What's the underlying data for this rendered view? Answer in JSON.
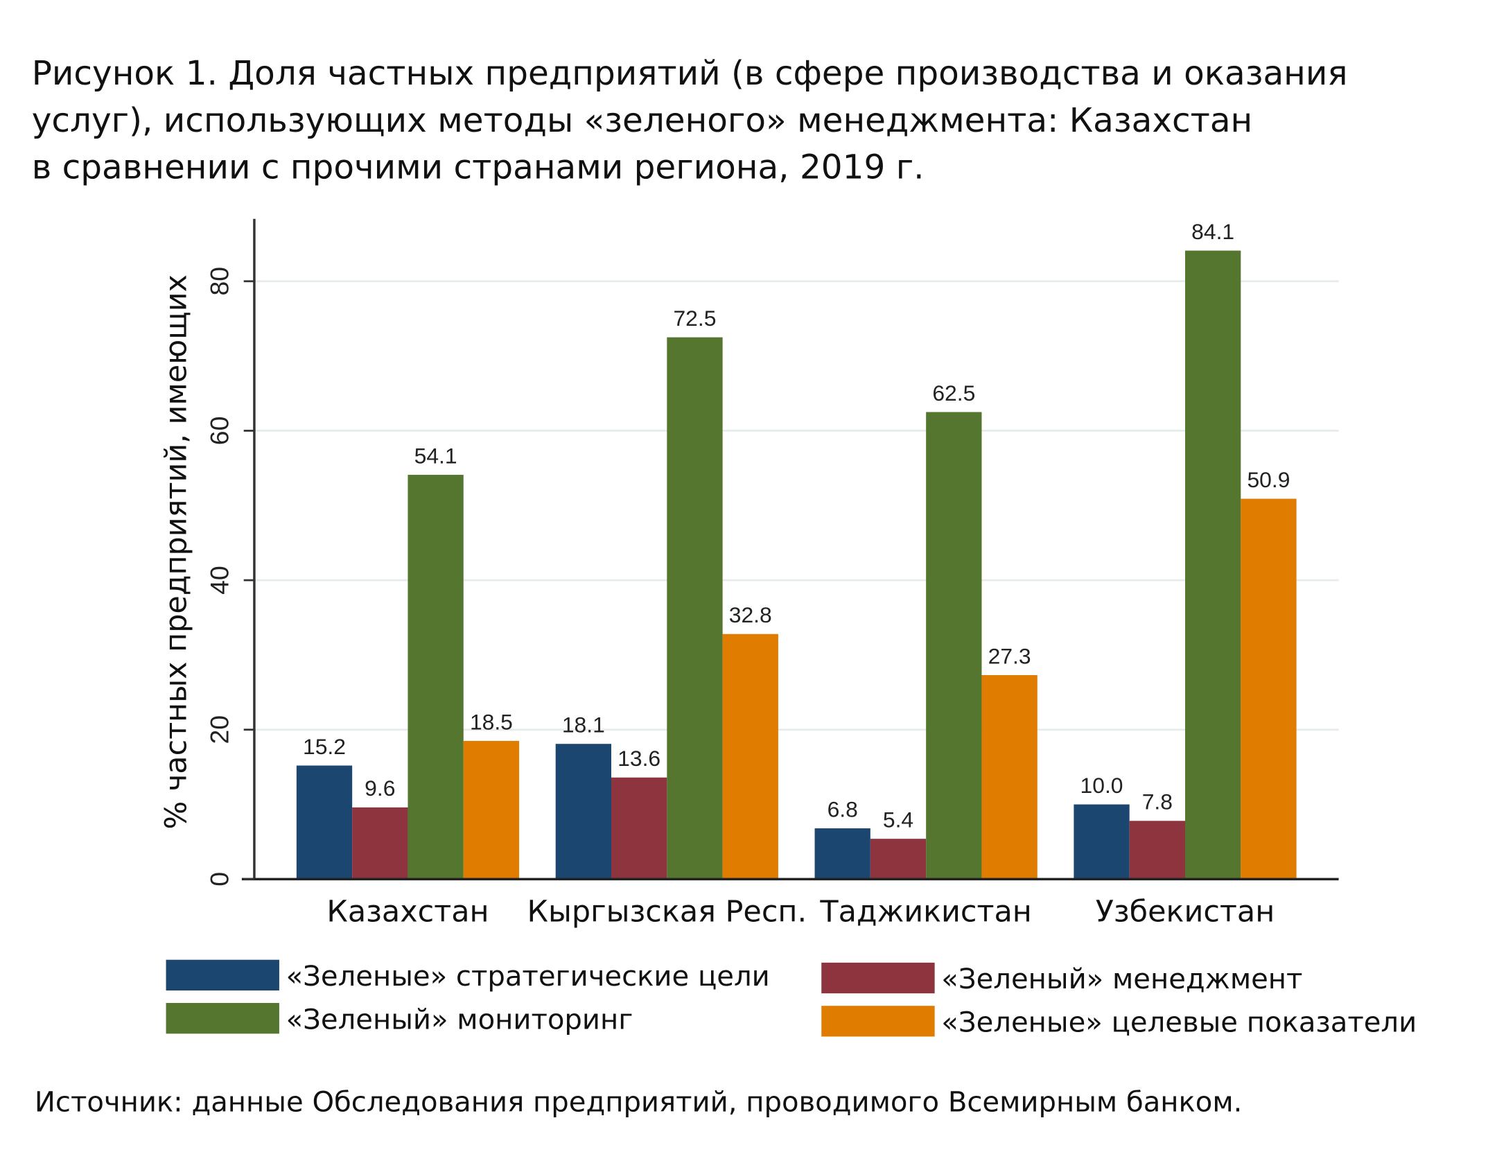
{
  "title_lines": [
    "Рисунок 1. Доля частных предприятий (в сфере производства и оказания",
    "услуг), использующих методы «зеленого» менеджмента: Казахстан",
    "в сравнении с прочими странами региона, 2019 г."
  ],
  "source": "Источник: данные Обследования предприятий, проводимого Всемирным банком.",
  "chart_data": {
    "type": "bar",
    "title": "Рисунок 1. Доля частных предприятий (в сфере производства и оказания услуг), использующих методы «зеленого» менеджмента: Казахстан в сравнении с прочими странами региона, 2019 г.",
    "xlabel": "",
    "ylabel": "% частных предприятий, имеющих",
    "ylim": [
      0,
      88
    ],
    "yticks": [
      "0",
      "20",
      "40",
      "60",
      "80"
    ],
    "grid": true,
    "legend_position": "bottom",
    "categories": [
      "Казахстан",
      "Кыргызская Респ.",
      "Таджикистан",
      "Узбекистан"
    ],
    "series": [
      {
        "name": "«Зеленые» стратегические цели",
        "color": "#1b4670",
        "values": [
          15.2,
          18.1,
          6.8,
          10.0
        ]
      },
      {
        "name": "«Зеленый» менеджмент",
        "color": "#8d343e",
        "values": [
          9.6,
          13.6,
          5.4,
          7.8
        ]
      },
      {
        "name": "«Зеленый» мониторинг",
        "color": "#55762f",
        "values": [
          54.1,
          72.5,
          62.5,
          84.1
        ]
      },
      {
        "name": "«Зеленые» целевые показатели",
        "color": "#e07c00",
        "values": [
          18.5,
          32.8,
          27.3,
          50.9
        ]
      }
    ]
  }
}
